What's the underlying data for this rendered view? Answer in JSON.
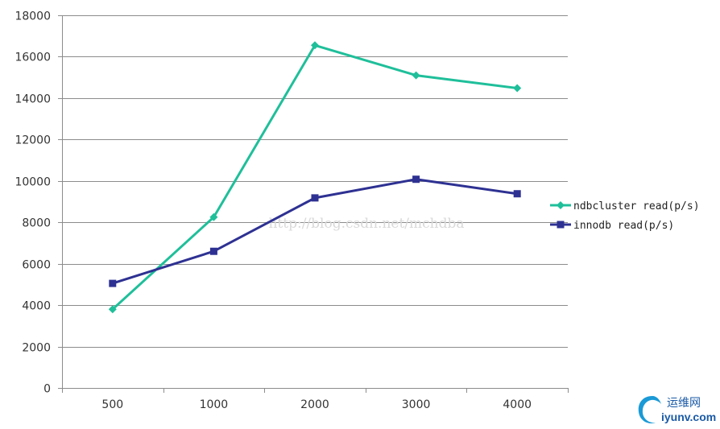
{
  "chart_data": {
    "type": "line",
    "categories": [
      "500",
      "1000",
      "2000",
      "3000",
      "4000"
    ],
    "series": [
      {
        "name": "ndbcluster read(p/s)",
        "values": [
          3800,
          8250,
          16550,
          15100,
          14480
        ],
        "color": "#1fbf9a",
        "marker": "diamond"
      },
      {
        "name": "innodb read(p/s)",
        "values": [
          5050,
          6600,
          9180,
          10080,
          9380
        ],
        "color": "#2e3192",
        "marker": "square"
      }
    ],
    "ylim": [
      0,
      18000
    ],
    "yticks": [
      "0",
      "2000",
      "4000",
      "6000",
      "8000",
      "10000",
      "12000",
      "14000",
      "16000",
      "18000"
    ],
    "grid": true,
    "legend_position": "right",
    "title": "",
    "xlabel": "",
    "ylabel": ""
  },
  "watermark": "http://blog.csdn.net/mchdba",
  "logo": {
    "chinese": "运维网",
    "domain": "iyunv.com"
  }
}
